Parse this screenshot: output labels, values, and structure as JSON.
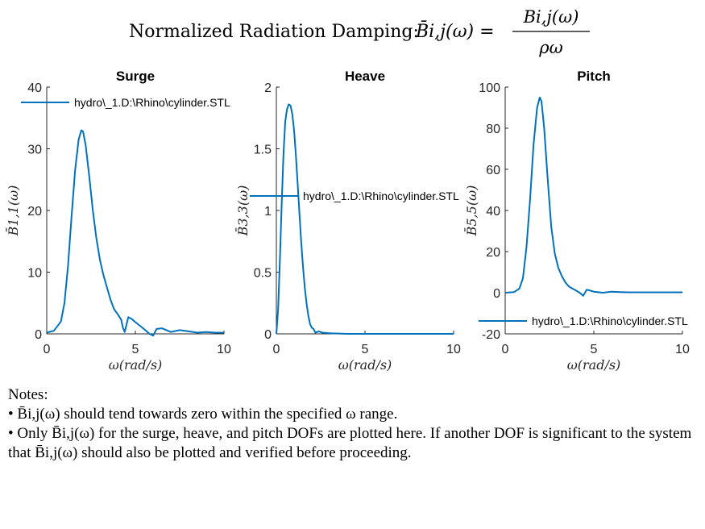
{
  "figure_title": {
    "prefix": "Normalized Radiation Damping:",
    "lhs": "B̄i,j(ω) =",
    "numerator": "Bi,j(ω)",
    "denominator": "ρω"
  },
  "chart_data": [
    {
      "type": "line",
      "title": "Surge",
      "xlabel": "ω(rad/s)",
      "ylabel": "B̄1,1(ω)",
      "xlim": [
        0,
        10
      ],
      "ylim": [
        0,
        40
      ],
      "xticks": [
        "0",
        "5",
        "10"
      ],
      "yticks": [
        "0",
        "10",
        "20",
        "30",
        "40"
      ],
      "legend": "hydro\\_1.D:\\Rhino\\cylinder.STL",
      "legend_position": "top-left",
      "color": "#0072BD",
      "x": [
        0,
        0.4,
        0.8,
        1.0,
        1.2,
        1.4,
        1.6,
        1.8,
        1.95,
        2.05,
        2.2,
        2.4,
        2.6,
        2.8,
        3.0,
        3.2,
        3.4,
        3.6,
        3.8,
        4.0,
        4.2,
        4.3,
        4.4,
        4.5,
        4.6,
        4.8,
        5.0,
        5.4,
        5.8,
        6.0,
        6.2,
        6.5,
        7.0,
        7.5,
        8.0,
        8.5,
        9.0,
        9.5,
        10.0
      ],
      "y": [
        0.2,
        0.5,
        2.0,
        5.0,
        11.0,
        19.0,
        26.5,
        31.5,
        33.0,
        32.8,
        30.5,
        25.5,
        20.0,
        15.5,
        12.0,
        9.5,
        7.5,
        5.5,
        4.0,
        3.2,
        2.3,
        1.0,
        0.3,
        1.5,
        2.7,
        2.4,
        1.9,
        1.0,
        0.0,
        -0.3,
        0.8,
        0.9,
        0.3,
        0.6,
        0.4,
        0.2,
        0.3,
        0.2,
        0.2
      ]
    },
    {
      "type": "line",
      "title": "Heave",
      "xlabel": "ω(rad/s)",
      "ylabel": "B̄3,3(ω)",
      "xlim": [
        0,
        10
      ],
      "ylim": [
        0,
        2
      ],
      "xticks": [
        "0",
        "5",
        "10"
      ],
      "yticks": [
        "0",
        "0.5",
        "1",
        "1.5",
        "2"
      ],
      "legend": "hydro\\_1.D:\\Rhino\\cylinder.STL",
      "legend_position": "center",
      "color": "#0072BD",
      "x": [
        0,
        0.1,
        0.2,
        0.3,
        0.4,
        0.5,
        0.6,
        0.7,
        0.8,
        0.9,
        1.0,
        1.1,
        1.2,
        1.3,
        1.4,
        1.5,
        1.6,
        1.7,
        1.8,
        1.9,
        2.0,
        2.1,
        2.2,
        2.4,
        2.6,
        3.0,
        4.0,
        5.0,
        6.0,
        8.0,
        10.0
      ],
      "y": [
        0.0,
        0.2,
        0.6,
        1.05,
        1.45,
        1.72,
        1.82,
        1.86,
        1.85,
        1.78,
        1.65,
        1.45,
        1.22,
        0.98,
        0.75,
        0.55,
        0.38,
        0.25,
        0.15,
        0.08,
        0.05,
        0.04,
        0.01,
        0.02,
        0.01,
        0.005,
        0.0,
        0.0,
        0.0,
        0.0,
        0.0
      ]
    },
    {
      "type": "line",
      "title": "Pitch",
      "xlabel": "ω(rad/s)",
      "ylabel": "B̄5,5(ω)",
      "xlim": [
        0,
        10
      ],
      "ylim": [
        -20,
        100
      ],
      "xticks": [
        "0",
        "5",
        "10"
      ],
      "yticks": [
        "-20",
        "0",
        "20",
        "40",
        "60",
        "80",
        "100"
      ],
      "legend": "hydro\\_1.D:\\Rhino\\cylinder.STL",
      "legend_position": "bottom-left",
      "color": "#0072BD",
      "x": [
        0,
        0.5,
        0.8,
        1.0,
        1.2,
        1.4,
        1.6,
        1.8,
        1.95,
        2.05,
        2.2,
        2.4,
        2.6,
        2.8,
        3.0,
        3.2,
        3.4,
        3.6,
        3.8,
        4.0,
        4.2,
        4.4,
        4.5,
        4.6,
        4.8,
        5.0,
        5.5,
        6.0,
        6.5,
        7.0,
        8.0,
        9.0,
        10.0
      ],
      "y": [
        0,
        0.3,
        2.0,
        7.0,
        22.0,
        45.0,
        72.0,
        90.0,
        95.0,
        93.0,
        80.0,
        55.0,
        32.0,
        19.0,
        12.0,
        8.0,
        5.0,
        3.0,
        2.0,
        1.0,
        0.0,
        -1.5,
        0.0,
        1.5,
        1.0,
        0.5,
        0.0,
        0.5,
        0.3,
        0.2,
        0.2,
        0.2,
        0.2
      ]
    }
  ],
  "notes": {
    "heading": "Notes:",
    "line1": "• B̄i,j(ω) should tend towards zero within the specified ω range.",
    "line2": "• Only B̄i,j(ω) for the surge, heave, and pitch DOFs are plotted here. If another DOF is significant to the system that B̄i,j(ω) should also be plotted and verified before proceeding."
  }
}
